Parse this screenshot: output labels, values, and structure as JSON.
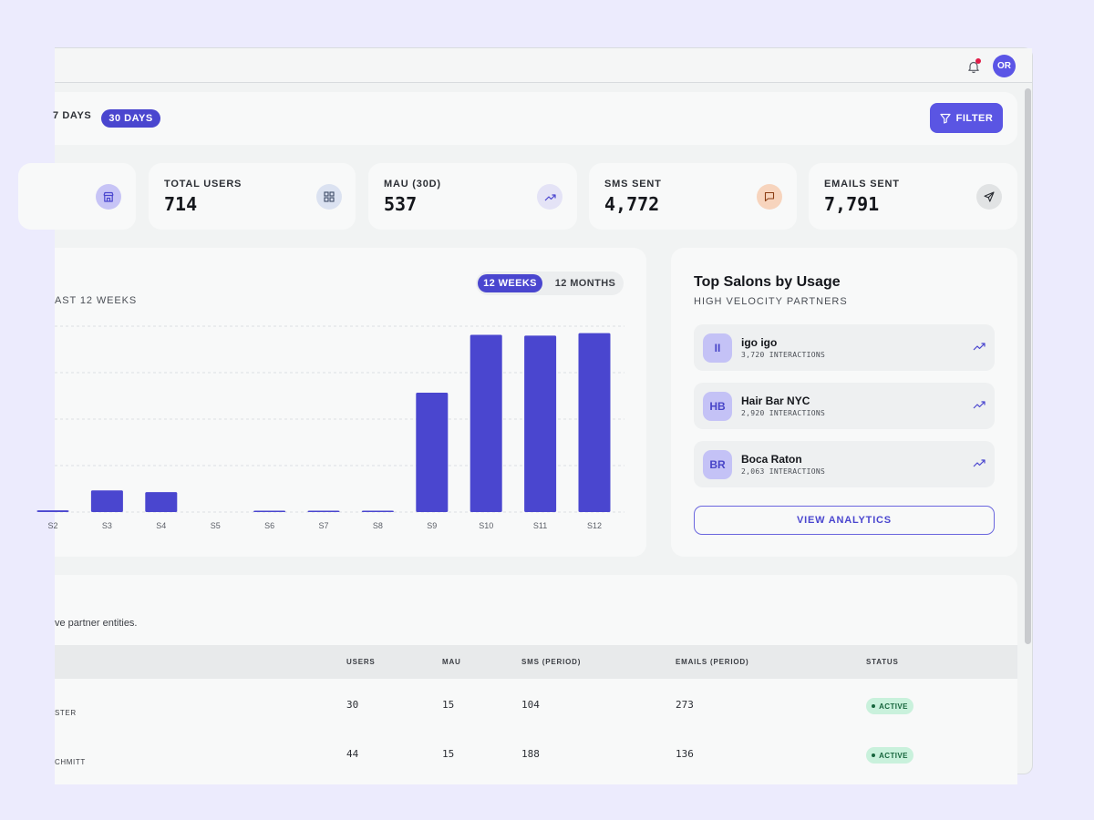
{
  "header": {
    "avatar_initials": "OR",
    "notification_icon": "bell-icon"
  },
  "filters": {
    "range_tabs": [
      "7 DAYS",
      "30 DAYS"
    ],
    "active_range": "30 DAYS",
    "filter_label": "FILTER"
  },
  "stats": [
    {
      "label": "TOTAL USERS",
      "value": "714",
      "icon": "grid-icon",
      "color": "#dbe2f1"
    },
    {
      "label": "MAU (30D)",
      "value": "537",
      "icon": "trend-up-icon",
      "color": "#e4e3f6"
    },
    {
      "label": "SMS SENT",
      "value": "4,772",
      "icon": "message-icon",
      "color": "#f7d4bd"
    },
    {
      "label": "EMAILS SENT",
      "value": "7,791",
      "icon": "send-icon",
      "color": "#e1e3e4"
    }
  ],
  "partial_stat_icon": "store-icon",
  "usage_chart": {
    "subtitle": "AST 12 WEEKS",
    "toggle": [
      "12 WEEKS",
      "12 MONTHS"
    ],
    "active_toggle": "12 WEEKS"
  },
  "chart_data": {
    "type": "bar",
    "categories": [
      "S2",
      "S3",
      "S4",
      "S5",
      "S6",
      "S7",
      "S8",
      "S9",
      "S10",
      "S11",
      "S12"
    ],
    "values": [
      2,
      25,
      23,
      0,
      1,
      1,
      1,
      138,
      205,
      204,
      207
    ],
    "ylim": [
      0,
      215
    ],
    "grid": true,
    "color": "#4a46cf"
  },
  "top_salons": {
    "title": "Top Salons by Usage",
    "subtitle": "HIGH VELOCITY PARTNERS",
    "items": [
      {
        "initials": "II",
        "name": "igo igo",
        "interactions": "3,720 INTERACTIONS"
      },
      {
        "initials": "HB",
        "name": "Hair Bar NYC",
        "interactions": "2,920 INTERACTIONS"
      },
      {
        "initials": "BR",
        "name": "Boca Raton",
        "interactions": "2,063 INTERACTIONS"
      }
    ],
    "view_label": "VIEW ANALYTICS"
  },
  "partners_table": {
    "description": "ve partner entities.",
    "columns": [
      "USERS",
      "MAU",
      "SMS (PERIOD)",
      "EMAILS (PERIOD)",
      "STATUS"
    ],
    "rows": [
      {
        "owner": "STER",
        "users": "30",
        "mau": "15",
        "sms": "104",
        "emails": "273",
        "status": "ACTIVE"
      },
      {
        "owner": "CHMITT",
        "users": "44",
        "mau": "15",
        "sms": "188",
        "emails": "136",
        "status": "ACTIVE"
      }
    ]
  }
}
